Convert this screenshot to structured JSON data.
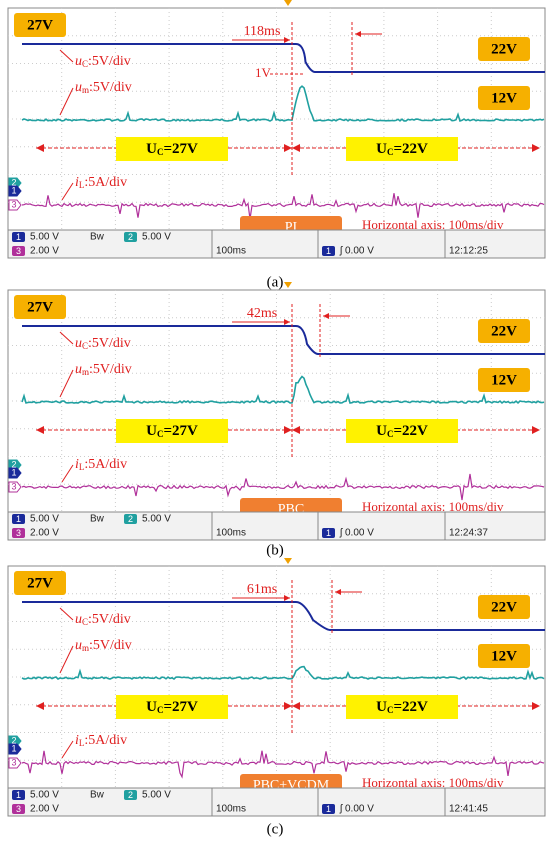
{
  "panels": [
    {
      "caption": "(a)",
      "v_high": "27V",
      "v_low": "22V",
      "v_mid": "12V",
      "delay": "118ms",
      "dip": "1V",
      "uc": {
        "symbol": "u",
        "sub": "C",
        "text": ":5V/div"
      },
      "um": {
        "symbol": "u",
        "sub": "m",
        "text": ":5V/div"
      },
      "il": {
        "symbol": "i",
        "sub": "L",
        "text": ":5A/div"
      },
      "left_region": {
        "symbol": "U",
        "sub": "C",
        "text": "=27V"
      },
      "right_region": {
        "symbol": "U",
        "sub": "C",
        "text": "=22V"
      },
      "controller": "PI",
      "axis_note": "Horizontal axis: 100ms/div",
      "markers": [
        "2",
        "1",
        "3"
      ],
      "status": {
        "ch1": "1",
        "ch1_scale": "5.00 V",
        "bw": "Bᴡ",
        "ch2": "2",
        "ch2_scale": "5.00 V",
        "ch3": "3",
        "ch3_scale": "2.00 V",
        "time": "100ms",
        "trig_ch": "1",
        "trig": "ʃ 0.00 V",
        "clock": "12:12:25"
      }
    },
    {
      "caption": "(b)",
      "v_high": "27V",
      "v_low": "22V",
      "v_mid": "12V",
      "delay": "42ms",
      "uc": {
        "symbol": "u",
        "sub": "C",
        "text": ":5V/div"
      },
      "um": {
        "symbol": "u",
        "sub": "m",
        "text": ":5V/div"
      },
      "il": {
        "symbol": "i",
        "sub": "L",
        "text": ":5A/div"
      },
      "left_region": {
        "symbol": "U",
        "sub": "C",
        "text": "=27V"
      },
      "right_region": {
        "symbol": "U",
        "sub": "C",
        "text": "=22V"
      },
      "controller": "PBC",
      "axis_note": "Horizontal axis: 100ms/div",
      "markers": [
        "2",
        "1",
        "3"
      ],
      "status": {
        "ch1": "1",
        "ch1_scale": "5.00 V",
        "bw": "Bᴡ",
        "ch2": "2",
        "ch2_scale": "5.00 V",
        "ch3": "3",
        "ch3_scale": "2.00 V",
        "time": "100ms",
        "trig_ch": "1",
        "trig": "ʃ 0.00 V",
        "clock": "12:24:37"
      }
    },
    {
      "caption": "(c)",
      "v_high": "27V",
      "v_low": "22V",
      "v_mid": "12V",
      "delay": "61ms",
      "uc": {
        "symbol": "u",
        "sub": "C",
        "text": ":5V/div"
      },
      "um": {
        "symbol": "u",
        "sub": "m",
        "text": ":5V/div"
      },
      "il": {
        "symbol": "i",
        "sub": "L",
        "text": ":5A/div"
      },
      "left_region": {
        "symbol": "U",
        "sub": "C",
        "text": "=27V"
      },
      "right_region": {
        "symbol": "U",
        "sub": "C",
        "text": "=22V"
      },
      "controller": "PBC+VCDM",
      "axis_note": "Horizontal axis: 100ms/div",
      "markers": [
        "2",
        "1",
        "3"
      ],
      "status": {
        "ch1": "1",
        "ch1_scale": "5.00 V",
        "bw": "Bᴡ",
        "ch2": "2",
        "ch2_scale": "5.00 V",
        "ch3": "3",
        "ch3_scale": "2.00 V",
        "time": "100ms",
        "trig_ch": "1",
        "trig": "ʃ 0.00 V",
        "clock": "12:41:45"
      }
    }
  ]
}
